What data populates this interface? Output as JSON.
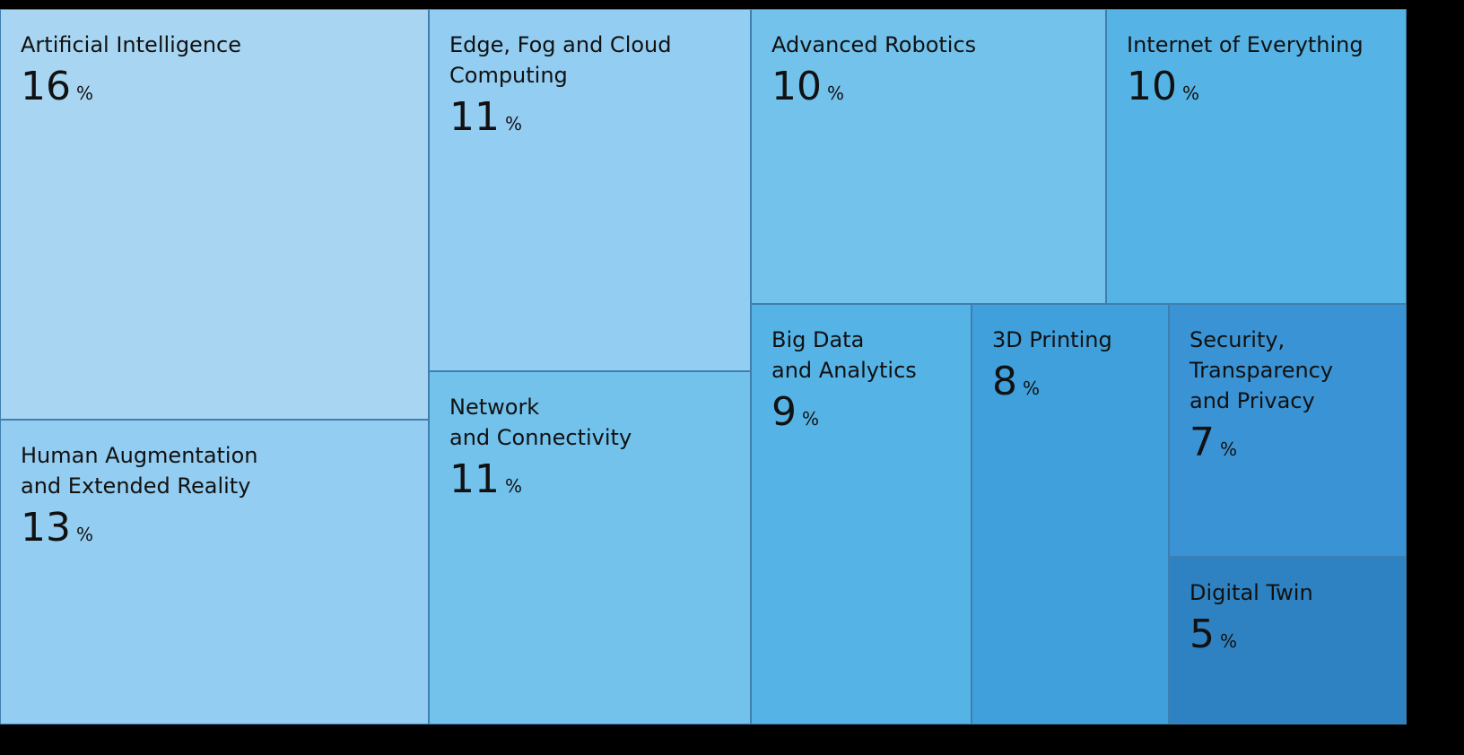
{
  "chart_data": {
    "type": "treemap",
    "categories": [
      "Artificial Intelligence",
      "Human Augmentation\nand Extended Reality",
      "Edge, Fog and Cloud\nComputing",
      "Network\nand Connectivity",
      "Advanced Robotics",
      "Internet of Everything",
      "Big Data\nand Analytics",
      "3D Printing",
      "Security,\nTransparency\nand Privacy",
      "Digital Twin"
    ],
    "values": [
      16,
      13,
      11,
      11,
      10,
      10,
      9,
      8,
      7,
      5
    ],
    "unit": "%",
    "colors": [
      "#a8d6f2",
      "#93cdf1",
      "#93cdf1",
      "#72c2ec",
      "#72c2ec",
      "#56b3e6",
      "#56b3e6",
      "#3fa0dc",
      "#3a93d4",
      "#2f82c2"
    ]
  }
}
